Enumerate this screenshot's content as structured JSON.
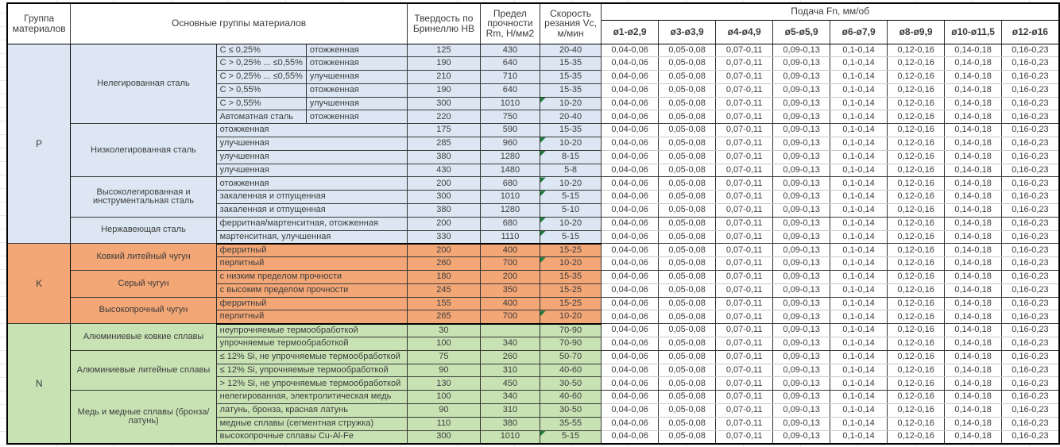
{
  "table": {
    "header": {
      "col_group": "Группа материалов",
      "col_material": "Основные группы материалов",
      "col_hardness": "Твердость по Бринеллю НВ",
      "col_strength": "Предел прочности Rm, Н/мм2",
      "col_speed": "Скорость резания Vc, м/мин",
      "feed_title": "Подача Fn, мм/об",
      "feed_cols": [
        "ø1-ø2,9",
        "ø3-ø3,9",
        "ø4-ø4,9",
        "ø5-ø5,9",
        "ø6-ø7,9",
        "ø8-ø9,9",
        "ø10-ø11,5",
        "ø12-ø16"
      ]
    },
    "feed_values": [
      "0,04-0,06",
      "0,05-0,08",
      "0,07-0,11",
      "0,09-0,13",
      "0,1-0,14",
      "0,12-0,16",
      "0,14-0,18",
      "0,16-0,23"
    ],
    "groups": [
      {
        "code": "P",
        "color": "#DCE7F3",
        "subgroups": [
          {
            "name": "Нелегированная сталь",
            "rows": [
              {
                "spec": "C ≤ 0,25%",
                "state": "отожженная",
                "hb": "125",
                "rm": "430",
                "vc": "20-40",
                "flag": false
              },
              {
                "spec": "C > 0,25% ... ≤0,55%",
                "state": "отожженная",
                "hb": "190",
                "rm": "640",
                "vc": "15-35",
                "flag": false
              },
              {
                "spec": "C > 0,25% ... ≤0,55%",
                "state": "улучшенная",
                "hb": "210",
                "rm": "710",
                "vc": "15-35",
                "flag": false
              },
              {
                "spec": "C > 0,55%",
                "state": "отожженная",
                "hb": "190",
                "rm": "640",
                "vc": "15-35",
                "flag": false
              },
              {
                "spec": "C > 0,55%",
                "state": "улучшенная",
                "hb": "300",
                "rm": "1010",
                "vc": "10-20",
                "flag": true
              },
              {
                "spec": "Автоматная сталь",
                "state": "отожженная",
                "hb": "220",
                "rm": "750",
                "vc": "20-40",
                "flag": false
              }
            ]
          },
          {
            "name": "Низколегированная сталь",
            "rows": [
              {
                "desc": "отожженная",
                "hb": "175",
                "rm": "590",
                "vc": "15-35",
                "flag": false
              },
              {
                "desc": "улучшенная",
                "hb": "285",
                "rm": "960",
                "vc": "10-20",
                "flag": true
              },
              {
                "desc": "улучшенная",
                "hb": "380",
                "rm": "1280",
                "vc": "8-15",
                "flag": true
              },
              {
                "desc": "улучшенная",
                "hb": "430",
                "rm": "1480",
                "vc": "5-8",
                "flag": false
              }
            ]
          },
          {
            "name": "Высоколегированная и инструментальная сталь",
            "rows": [
              {
                "desc": "отожженная",
                "hb": "200",
                "rm": "680",
                "vc": "10-20",
                "flag": true
              },
              {
                "desc": "закаленная и отпущенная",
                "hb": "300",
                "rm": "1010",
                "vc": "5-15",
                "flag": true
              },
              {
                "desc": "закаленная и отпущенная",
                "hb": "380",
                "rm": "1280",
                "vc": "5-10",
                "flag": false
              }
            ]
          },
          {
            "name": "Нержавеющая сталь",
            "rows": [
              {
                "desc": "ферритная/мартенситная, отожженная",
                "hb": "200",
                "rm": "680",
                "vc": "10-20",
                "flag": true
              },
              {
                "desc": "мартенситная, улучшенная",
                "hb": "330",
                "rm": "1110",
                "vc": "5-15",
                "flag": true
              }
            ]
          }
        ]
      },
      {
        "code": "K",
        "color": "#F3A676",
        "subgroups": [
          {
            "name": "Ковкий литейный чугун",
            "rows": [
              {
                "desc": "ферритный",
                "hb": "200",
                "rm": "400",
                "vc": "15-25",
                "flag": false
              },
              {
                "desc": "перлитный",
                "hb": "260",
                "rm": "700",
                "vc": "10-20",
                "flag": true
              }
            ]
          },
          {
            "name": "Серый чугун",
            "rows": [
              {
                "desc": "с низким пределом прочности",
                "hb": "180",
                "rm": "200",
                "vc": "15-35",
                "flag": false
              },
              {
                "desc": "с высоким пределом прочности",
                "hb": "245",
                "rm": "350",
                "vc": "15-25",
                "flag": false
              }
            ]
          },
          {
            "name": "Высокопрочный чугун",
            "rows": [
              {
                "desc": "ферритный",
                "hb": "155",
                "rm": "400",
                "vc": "15-25",
                "flag": false
              },
              {
                "desc": "перлитный",
                "hb": "265",
                "rm": "700",
                "vc": "10-20",
                "flag": true
              }
            ]
          }
        ]
      },
      {
        "code": "N",
        "color": "#C8E2B4",
        "subgroups": [
          {
            "name": "Алюминиевые ковкие сплавы",
            "rows": [
              {
                "desc": "неупрочняемые термообработкой",
                "hb": "30",
                "rm": "",
                "vc": "70-90",
                "flag": false
              },
              {
                "desc": "упрочняемые термообработкой",
                "hb": "100",
                "rm": "340",
                "vc": "70-90",
                "flag": false
              }
            ]
          },
          {
            "name": "Алюминиевые литейные сплавы",
            "rows": [
              {
                "desc": "≤ 12% Si, не упрочняемые термообработкой",
                "hb": "75",
                "rm": "260",
                "vc": "50-70",
                "flag": false
              },
              {
                "desc": "≤ 12% Si, упрочняемые термообработкой",
                "hb": "90",
                "rm": "310",
                "vc": "40-60",
                "flag": false
              },
              {
                "desc": "> 12% Si, не упрочняемые термообработкой",
                "hb": "130",
                "rm": "450",
                "vc": "30-50",
                "flag": false
              }
            ]
          },
          {
            "name": "Медь и медные сплавы (бронза/латунь)",
            "rows": [
              {
                "desc": "нелегированная, электролитическая медь",
                "hb": "100",
                "rm": "340",
                "vc": "40-60",
                "flag": false
              },
              {
                "desc": "латунь, бронза, красная латунь",
                "hb": "90",
                "rm": "310",
                "vc": "30-50",
                "flag": false
              },
              {
                "desc": "медные сплавы (сегментная стружка)",
                "hb": "110",
                "rm": "380",
                "vc": "35-55",
                "flag": false
              },
              {
                "desc": "высокопрочные сплавы Cu-Al-Fe",
                "hb": "300",
                "rm": "1010",
                "vc": "5-15",
                "flag": true
              }
            ]
          }
        ]
      }
    ]
  }
}
